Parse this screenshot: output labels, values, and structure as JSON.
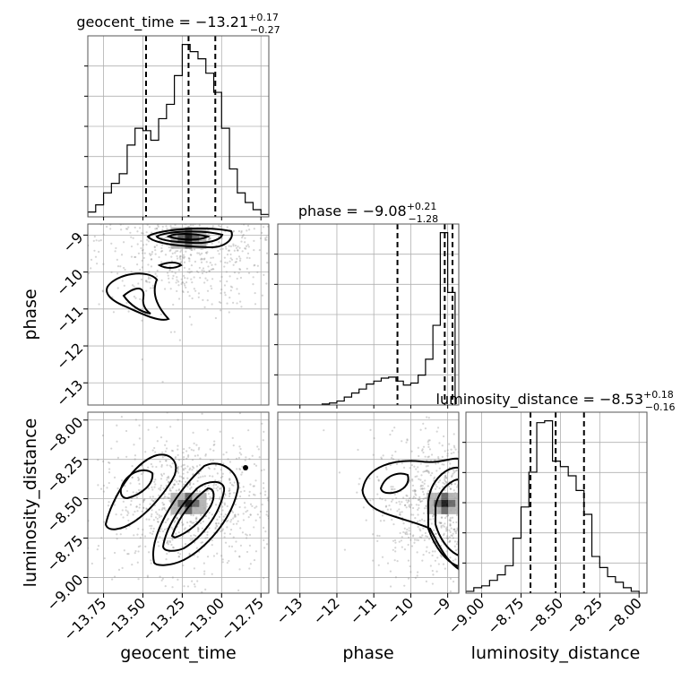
{
  "chart_data": {
    "type": "corner",
    "parameters": [
      {
        "name": "geocent_time",
        "title_prefix": "geocent_time = ",
        "median": "−13.21",
        "upper": "+0.17",
        "lower": "−0.27",
        "range": [
          -13.85,
          -12.7
        ],
        "ticks": [
          -13.75,
          -13.5,
          -13.25,
          -13.0,
          -12.75
        ],
        "tick_labels": [
          "−13.75",
          "−13.50",
          "−13.25",
          "−13.00",
          "−12.75"
        ],
        "quantiles": [
          -13.48,
          -13.21,
          -13.04
        ],
        "hist_edges": [
          -13.85,
          -13.8,
          -13.75,
          -13.7,
          -13.65,
          -13.6,
          -13.55,
          -13.5,
          -13.45,
          -13.4,
          -13.35,
          -13.3,
          -13.25,
          -13.2,
          -13.15,
          -13.1,
          -13.05,
          -13.0,
          -12.95,
          -12.9,
          -12.85,
          -12.8,
          -12.75,
          -12.7
        ],
        "hist_counts": [
          2,
          5,
          10,
          14,
          18,
          30,
          37,
          36,
          32,
          41,
          47,
          59,
          72,
          69,
          66,
          60,
          52,
          37,
          20,
          10,
          6,
          3,
          1
        ]
      },
      {
        "name": "phase",
        "title_prefix": "phase = ",
        "median": "−9.08",
        "upper": "+0.21",
        "lower": "−1.28",
        "range": [
          -13.6,
          -8.7
        ],
        "ticks": [
          -13,
          -12,
          -11,
          -10,
          -9
        ],
        "tick_labels": [
          "−13",
          "−12",
          "−11",
          "−10",
          "−9"
        ],
        "quantiles": [
          -10.36,
          -9.08,
          -8.87
        ],
        "hist_edges": [
          -13.6,
          -13.4,
          -13.2,
          -13.0,
          -12.8,
          -12.6,
          -12.4,
          -12.2,
          -12.0,
          -11.8,
          -11.6,
          -11.4,
          -11.2,
          -11.0,
          -10.8,
          -10.6,
          -10.4,
          -10.2,
          -10.0,
          -9.8,
          -9.6,
          -9.4,
          -9.2,
          -9.0,
          -8.8
        ],
        "hist_counts": [
          0,
          0,
          0,
          0,
          0,
          0,
          1,
          2,
          4,
          8,
          12,
          16,
          21,
          24,
          27,
          28,
          24,
          20,
          22,
          30,
          46,
          80,
          173,
          113
        ]
      },
      {
        "name": "luminosity_distance",
        "title_prefix": "luminosity_distance = ",
        "median": "−8.53",
        "upper": "+0.18",
        "lower": "−0.16",
        "range": [
          -9.1,
          -7.95
        ],
        "ticks": [
          -9.0,
          -8.75,
          -8.5,
          -8.25,
          -8.0
        ],
        "tick_labels": [
          "−9.00",
          "−8.75",
          "−8.50",
          "−8.25",
          "−8.00"
        ],
        "quantiles": [
          -8.69,
          -8.53,
          -8.35
        ],
        "hist_edges": [
          -9.1,
          -9.05,
          -9.0,
          -8.95,
          -8.9,
          -8.85,
          -8.8,
          -8.75,
          -8.7,
          -8.65,
          -8.6,
          -8.55,
          -8.5,
          -8.45,
          -8.4,
          -8.35,
          -8.3,
          -8.25,
          -8.2,
          -8.15,
          -8.1,
          -8.05,
          -8.0,
          -7.95
        ],
        "hist_counts": [
          1,
          3,
          4,
          7,
          10,
          15,
          30,
          47,
          66,
          93,
          94,
          72,
          69,
          64,
          56,
          43,
          20,
          14,
          9,
          6,
          3,
          1,
          0
        ]
      }
    ],
    "hist_levels": 5,
    "density_color": "#000000",
    "scatter_color": "#888888",
    "grid": true
  }
}
